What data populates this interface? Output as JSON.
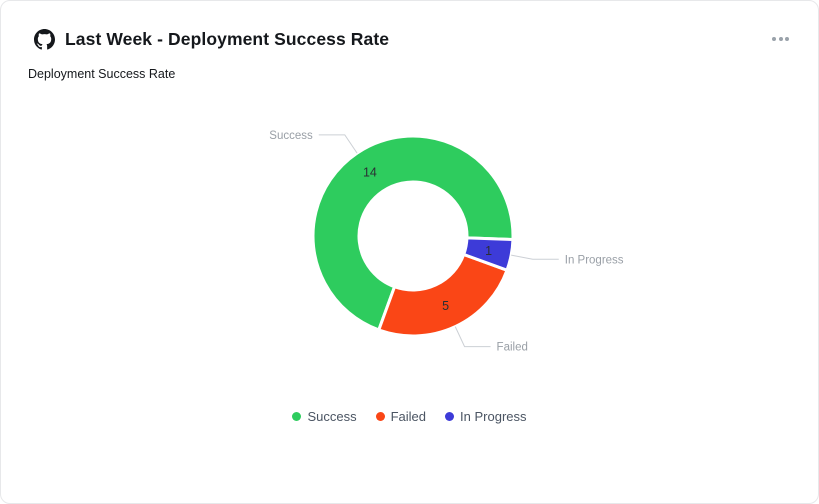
{
  "card": {
    "title": "Last Week - Deployment Success Rate",
    "source_icon": "github",
    "menu_icon": "ellipsis-horizontal"
  },
  "chart_data": {
    "type": "pie",
    "variant": "donut",
    "title": "Deployment Success Rate",
    "segments": [
      {
        "label": "Success",
        "value": 14,
        "color": "#2ECC5E"
      },
      {
        "label": "Failed",
        "value": 5,
        "color": "#FA4616"
      },
      {
        "label": "In Progress",
        "value": 1,
        "color": "#3D3BD8"
      }
    ],
    "total": 20,
    "start_angle": 92,
    "direction": "counterclockwise",
    "inner_radius_ratio": 0.54,
    "labels": {
      "outside": "name",
      "inside": "value"
    },
    "legend_position": "bottom",
    "label_color_outside": "#999fa6",
    "label_color_inside": "#2b2f34"
  }
}
